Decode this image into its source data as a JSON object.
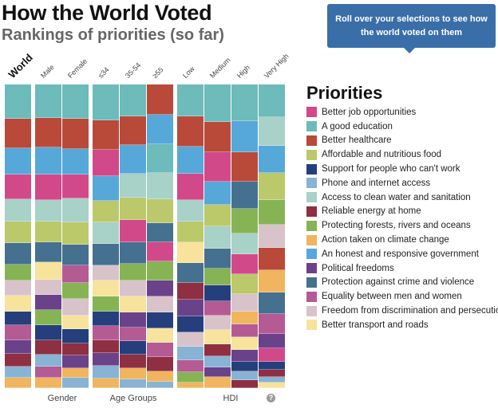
{
  "header": {
    "title": "How the World Voted",
    "subtitle": "Rankings of priorities (so far)",
    "tooltip": "Roll over your selections to see how the world voted on them"
  },
  "legend": {
    "title": "Priorities"
  },
  "footer": {
    "groups": [
      "Gender",
      "Age Groups",
      "HDI"
    ],
    "help_icon": "question-circle-icon",
    "help_glyph": "?"
  },
  "chart_data": {
    "type": "bar",
    "stacked": true,
    "normalized": true,
    "title": "How the World Voted",
    "subtitle": "Rankings of priorities (so far)",
    "legend_placement": "right",
    "priorities": [
      {
        "name": "Better job opportunities",
        "color": "#d2498a"
      },
      {
        "name": "A good education",
        "color": "#6dbbbb"
      },
      {
        "name": "Better healthcare",
        "color": "#b94a3a"
      },
      {
        "name": "Affordable and nutritious food",
        "color": "#bbc96b"
      },
      {
        "name": "Support for people who can't work",
        "color": "#253f7d"
      },
      {
        "name": "Phone and internet access",
        "color": "#88b3d4"
      },
      {
        "name": "Access to clean water and sanitation",
        "color": "#a8d1c8"
      },
      {
        "name": "Reliable energy at home",
        "color": "#8e2f42"
      },
      {
        "name": "Protecting forests, rivers and oceans",
        "color": "#86b455"
      },
      {
        "name": "Action taken on climate change",
        "color": "#f0b55e"
      },
      {
        "name": "An honest and responsive government",
        "color": "#56a8d9"
      },
      {
        "name": "Political freedoms",
        "color": "#6a428a"
      },
      {
        "name": "Protection against crime and violence",
        "color": "#46708f"
      },
      {
        "name": "Equality between men and women",
        "color": "#b45b94"
      },
      {
        "name": "Freedom from discrimination and persecution",
        "color": "#d9c3ca"
      },
      {
        "name": "Better transport and roads",
        "color": "#f7e39c"
      }
    ],
    "columns": [
      {
        "label": "World",
        "group": "",
        "order": [
          1,
          2,
          10,
          0,
          6,
          3,
          12,
          8,
          14,
          15,
          4,
          13,
          11,
          7,
          5,
          9
        ],
        "shares": [
          43,
          37,
          33,
          31,
          28,
          27,
          27,
          20,
          19,
          20,
          17,
          19,
          17,
          16,
          14,
          13
        ]
      },
      {
        "label": "Male",
        "group": "Gender",
        "order": [
          1,
          2,
          10,
          0,
          6,
          3,
          12,
          15,
          14,
          11,
          8,
          4,
          7,
          5,
          13,
          9
        ],
        "shares": [
          42,
          37,
          34,
          32,
          27,
          26,
          25,
          22,
          19,
          19,
          19,
          19,
          18,
          15,
          14,
          13
        ]
      },
      {
        "label": "Female",
        "group": "Gender",
        "order": [
          1,
          2,
          10,
          0,
          6,
          3,
          12,
          13,
          8,
          14,
          15,
          4,
          7,
          11,
          9,
          5
        ],
        "shares": [
          43,
          38,
          32,
          30,
          30,
          28,
          26,
          22,
          20,
          21,
          17,
          18,
          15,
          16,
          12,
          13
        ]
      },
      {
        "label": "≤34",
        "group": "Age Groups",
        "order": [
          1,
          2,
          0,
          10,
          3,
          6,
          12,
          14,
          15,
          8,
          4,
          13,
          7,
          11,
          5,
          9
        ],
        "shares": [
          45,
          37,
          33,
          31,
          27,
          27,
          27,
          19,
          20,
          19,
          18,
          18,
          16,
          16,
          16,
          12
        ]
      },
      {
        "label": "35-54",
        "group": "Age Groups",
        "order": [
          1,
          2,
          10,
          6,
          3,
          0,
          12,
          8,
          14,
          15,
          11,
          13,
          4,
          7,
          9,
          5
        ],
        "shares": [
          40,
          36,
          36,
          30,
          28,
          28,
          27,
          21,
          20,
          20,
          19,
          17,
          17,
          17,
          14,
          11
        ]
      },
      {
        "label": "≥55",
        "group": "Age Groups",
        "order": [
          2,
          10,
          1,
          6,
          3,
          12,
          0,
          8,
          11,
          14,
          4,
          15,
          13,
          7,
          9,
          5
        ],
        "shares": [
          38,
          37,
          36,
          33,
          30,
          24,
          24,
          24,
          20,
          20,
          20,
          18,
          18,
          18,
          13,
          8
        ]
      },
      {
        "label": "Low",
        "group": "HDI",
        "order": [
          1,
          2,
          10,
          0,
          6,
          3,
          15,
          12,
          7,
          11,
          4,
          14,
          5,
          13,
          8,
          9
        ],
        "shares": [
          40,
          38,
          34,
          33,
          27,
          26,
          26,
          25,
          21,
          21,
          20,
          18,
          17,
          15,
          13,
          7
        ]
      },
      {
        "label": "Medium",
        "group": "HDI",
        "order": [
          1,
          2,
          0,
          10,
          3,
          6,
          12,
          8,
          4,
          13,
          14,
          15,
          7,
          5,
          11,
          9
        ],
        "shares": [
          47,
          38,
          37,
          29,
          27,
          28,
          25,
          21,
          20,
          18,
          18,
          18,
          15,
          14,
          12,
          14
        ]
      },
      {
        "label": "High",
        "group": "HDI",
        "order": [
          1,
          10,
          2,
          12,
          8,
          6,
          0,
          3,
          14,
          9,
          13,
          15,
          11,
          4,
          5,
          7
        ],
        "shares": [
          46,
          39,
          37,
          34,
          31,
          26,
          25,
          25,
          22,
          16,
          16,
          16,
          15,
          12,
          11,
          10
        ]
      },
      {
        "label": "Very High",
        "group": "HDI",
        "order": [
          1,
          6,
          10,
          3,
          8,
          14,
          2,
          9,
          12,
          13,
          11,
          0,
          4,
          7,
          5,
          15
        ],
        "shares": [
          41,
          36,
          34,
          34,
          31,
          29,
          28,
          28,
          27,
          25,
          18,
          17,
          10,
          9,
          7,
          7
        ]
      }
    ]
  }
}
